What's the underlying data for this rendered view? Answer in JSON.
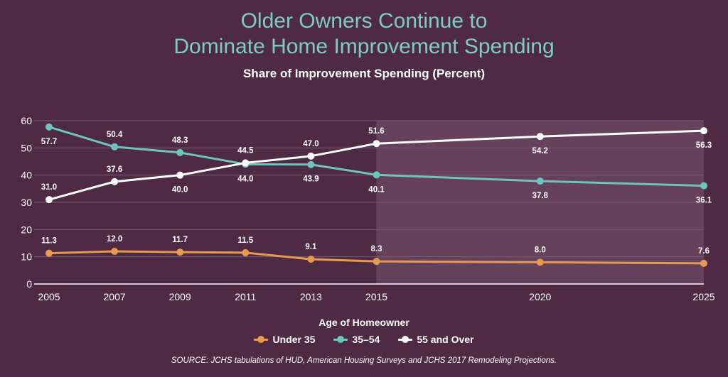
{
  "title_line1": "Older Owners Continue to",
  "title_line2": "Dominate Home Improvement Spending",
  "subtitle": "Share of Improvement Spending (Percent)",
  "source": "SOURCE: JCHS tabulations of HUD, American Housing Surveys and JCHS 2017 Remodeling Projections.",
  "colors": {
    "background": "#4e2a44",
    "title": "#7ecdc4",
    "projection_shade": "#6a4560",
    "grid": "#7a5c72"
  },
  "chart_data": {
    "type": "line",
    "title": "Share of Improvement Spending (Percent)",
    "xlabel": "Age of Homeowner",
    "ylabel": "",
    "ylim": [
      0,
      60
    ],
    "yticks": [
      0,
      10,
      20,
      30,
      40,
      50,
      60
    ],
    "x": [
      2005,
      2007,
      2009,
      2011,
      2013,
      2015,
      2020,
      2025
    ],
    "x_labels": [
      "2005",
      "2007",
      "2009",
      "2011",
      "2013",
      "2015",
      "2020",
      "2025"
    ],
    "projection_range": [
      2015,
      2025
    ],
    "grid": true,
    "legend_position": "bottom",
    "series": [
      {
        "name": "Under 35",
        "color": "#e89a4e",
        "values": [
          11.3,
          12.0,
          11.7,
          11.5,
          9.1,
          8.3,
          8.0,
          7.6
        ],
        "labels": [
          "11.3",
          "12.0",
          "11.7",
          "11.5",
          "9.1",
          "8.3",
          "8.0",
          "7.6"
        ],
        "label_pos": [
          "above",
          "above",
          "above",
          "above",
          "above",
          "above",
          "above",
          "above"
        ]
      },
      {
        "name": "35–54",
        "color": "#6ec5bd",
        "values": [
          57.7,
          50.4,
          48.3,
          44.0,
          43.9,
          40.1,
          37.8,
          36.1
        ],
        "labels": [
          "57.7",
          "50.4",
          "48.3",
          "44.0",
          "43.9",
          "40.1",
          "37.8",
          "36.1"
        ],
        "label_pos": [
          "below",
          "above",
          "above",
          "below",
          "below",
          "below",
          "below",
          "below"
        ]
      },
      {
        "name": "55 and Over",
        "color": "#ffffff",
        "values": [
          31.0,
          37.6,
          40.0,
          44.5,
          47.0,
          51.6,
          54.2,
          56.3
        ],
        "labels": [
          "31.0",
          "37.6",
          "40.0",
          "44.5",
          "47.0",
          "51.6",
          "54.2",
          "56.3"
        ],
        "label_pos": [
          "above",
          "above",
          "below",
          "above",
          "above",
          "above",
          "below",
          "below"
        ]
      }
    ]
  }
}
